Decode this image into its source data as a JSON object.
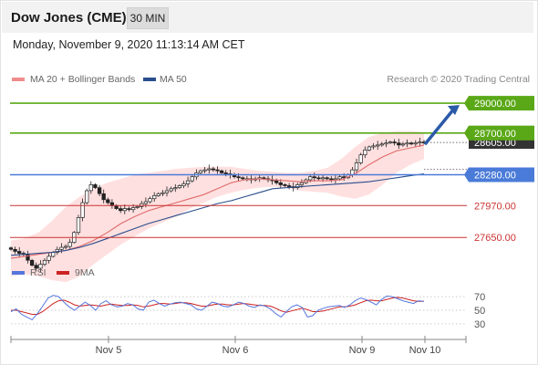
{
  "header": {
    "title": "Dow Jones (CME)",
    "timeframe": "30 MIN"
  },
  "date_line": "Monday, November 9, 2020 11:13:14 AM CET",
  "copyright": "Research © 2020 Trading Central",
  "colors": {
    "resistance": "#5aa817",
    "pivot": "#4a7bd8",
    "support": "#cc3333",
    "ma20": "#e06a6a",
    "ma50": "#2a4d8c",
    "rsi": "#5577dd",
    "rsi_ma": "#cc2222",
    "bollinger": "#ffd6d6",
    "arrow": "#2a5aa8"
  },
  "chart_data": [
    {
      "type": "candlestick",
      "legend": [
        {
          "name": "MA 20 + Bollinger Bands",
          "color": "#f08c8c"
        },
        {
          "name": "MA 50",
          "color": "#2a4d8c"
        }
      ],
      "x_tick_labels": [
        "Nov 5",
        "Nov 6",
        "Nov 9",
        "Nov 10"
      ],
      "ylim": [
        27450,
        29120
      ],
      "levels": [
        {
          "value": 29000.0,
          "label": "29000.00",
          "kind": "resistance"
        },
        {
          "value": 28700.0,
          "label": "28700.00",
          "kind": "resistance"
        },
        {
          "value": 28280.0,
          "label": "28280.00",
          "kind": "pivot"
        },
        {
          "value": 27970.0,
          "label": "27970.00",
          "kind": "support"
        },
        {
          "value": 27650.0,
          "label": "27650.00",
          "kind": "support"
        }
      ],
      "last_price": {
        "value": 28605,
        "label": "28605.00"
      },
      "closes": [
        27530,
        27510,
        27490,
        27480,
        27420,
        27370,
        27340,
        27380,
        27420,
        27460,
        27500,
        27530,
        27550,
        27560,
        27600,
        27700,
        27850,
        28000,
        28120,
        28180,
        28150,
        28090,
        28030,
        28000,
        27970,
        27940,
        27920,
        27940,
        27930,
        27950,
        27960,
        27990,
        28010,
        28040,
        28070,
        28090,
        28100,
        28120,
        28140,
        28150,
        28170,
        28190,
        28220,
        28260,
        28300,
        28320,
        28330,
        28340,
        28330,
        28320,
        28300,
        28290,
        28280,
        28260,
        28250,
        28240,
        28240,
        28230,
        28240,
        28250,
        28240,
        28230,
        28220,
        28200,
        28180,
        28170,
        28160,
        28150,
        28180,
        28200,
        28230,
        28260,
        28250,
        28240,
        28250,
        28240,
        28230,
        28240,
        28260,
        28250,
        28280,
        28330,
        28400,
        28480,
        28530,
        28560,
        28570,
        28580,
        28590,
        28600,
        28610,
        28600,
        28580,
        28590,
        28600,
        28590,
        28600,
        28610,
        28605
      ],
      "ma20": [
        27440,
        27460,
        27480,
        27500,
        27520,
        27560,
        27620,
        27700,
        27790,
        27860,
        27920,
        27960,
        28000,
        28040,
        28080,
        28140,
        28200,
        28230,
        28240,
        28230,
        28220,
        28210,
        28220,
        28220,
        28230,
        28290,
        28380,
        28460,
        28520,
        28550,
        28580
      ],
      "ma50": [
        27470,
        27480,
        27490,
        27500,
        27520,
        27550,
        27590,
        27640,
        27690,
        27740,
        27790,
        27830,
        27870,
        27910,
        27950,
        27990,
        28020,
        28060,
        28100,
        28140,
        28150,
        28160,
        28170,
        28180,
        28190,
        28200,
        28210,
        28230,
        28250,
        28270,
        28290
      ],
      "bb_upper": [
        27620,
        27640,
        27700,
        27820,
        27960,
        28060,
        28140,
        28200,
        28240,
        28280,
        28300,
        28320,
        28340,
        28350,
        28360,
        28360,
        28360,
        28340,
        28320,
        28310,
        28300,
        28300,
        28320,
        28350,
        28440,
        28560,
        28660,
        28700,
        28720,
        28720,
        28710
      ],
      "bb_lower": [
        27260,
        27280,
        27260,
        27220,
        27200,
        27260,
        27380,
        27480,
        27580,
        27660,
        27740,
        27800,
        27860,
        27940,
        28000,
        28060,
        28100,
        28130,
        28150,
        28160,
        28150,
        28120,
        28110,
        28100,
        28060,
        28040,
        28080,
        28180,
        28300,
        28380,
        28440
      ]
    },
    {
      "type": "line",
      "title": "RSI",
      "legend": [
        {
          "name": "RSI",
          "color": "#5577dd"
        },
        {
          "name": "9MA",
          "color": "#cc2222"
        }
      ],
      "y_tick_labels": [
        "70",
        "50",
        "30"
      ],
      "ylim": [
        15,
        85
      ],
      "rsi": [
        48,
        52,
        44,
        40,
        36,
        45,
        56,
        68,
        72,
        70,
        62,
        55,
        50,
        56,
        62,
        57,
        50,
        60,
        64,
        58,
        55,
        56,
        60,
        58,
        52,
        50,
        62,
        65,
        60,
        56,
        59,
        61,
        62,
        60,
        58,
        52,
        50,
        56,
        62,
        60,
        56,
        55,
        58,
        62,
        60,
        56,
        54,
        58,
        56,
        52,
        45,
        40,
        48,
        55,
        58,
        54,
        40,
        42,
        50,
        53,
        55,
        56,
        57,
        54,
        58,
        64,
        68,
        66,
        62,
        58,
        66,
        71,
        70,
        67,
        64,
        62,
        60,
        64,
        63
      ],
      "rsi_ma": [
        50,
        50,
        48,
        46,
        44,
        44,
        48,
        54,
        60,
        64,
        65,
        62,
        58,
        56,
        57,
        58,
        57,
        56,
        58,
        59,
        58,
        57,
        57,
        58,
        57,
        55,
        56,
        58,
        60,
        60,
        59,
        60,
        61,
        61,
        60,
        58,
        56,
        56,
        58,
        59,
        59,
        58,
        58,
        59,
        60,
        59,
        58,
        57,
        57,
        56,
        53,
        49,
        47,
        49,
        51,
        53,
        51,
        48,
        48,
        49,
        51,
        53,
        55,
        55,
        56,
        58,
        61,
        64,
        65,
        64,
        64,
        66,
        68,
        69,
        68,
        66,
        64,
        63,
        63
      ]
    }
  ]
}
